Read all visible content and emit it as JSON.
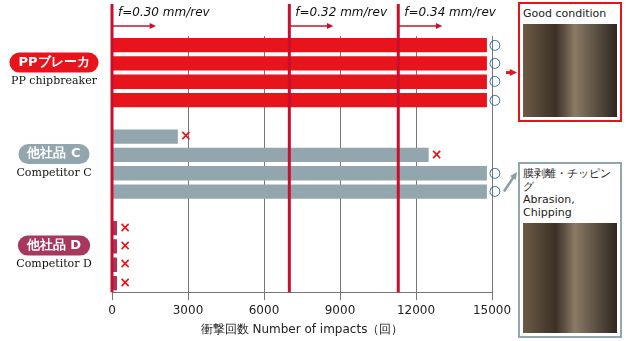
{
  "chart_data": {
    "type": "bar",
    "orientation": "horizontal",
    "x_label": "衝撃回数 Number of impacts（回）",
    "xlim": [
      0,
      15000
    ],
    "xticks": [
      0,
      3000,
      6000,
      9000,
      12000,
      15000
    ],
    "grid": true,
    "tick_labels": "x",
    "groups": [
      {
        "label": "PPブレーカ",
        "label_en": "PP chipbreaker",
        "color": "#e8141c",
        "values": [
          14800,
          14800,
          14800,
          14800
        ],
        "marks": [
          "○",
          "○",
          "○",
          "○"
        ]
      },
      {
        "label": "他社品 C",
        "label_en": "Competitor C",
        "color": "#93a6ad",
        "values": [
          2600,
          12500,
          14800,
          14800
        ],
        "marks": [
          "×",
          "×",
          "○",
          "○"
        ]
      },
      {
        "label": "他社品 D",
        "label_en": "Competitor D",
        "color": "#a8375e",
        "values": [
          200,
          200,
          200,
          200
        ],
        "marks": [
          "×",
          "×",
          "×",
          "×"
        ]
      }
    ],
    "mark_colors": {
      "○": "#1f5fa8",
      "×": "#e8141c"
    },
    "feed_lines": [
      {
        "x": 0,
        "label": "f=0.30 mm/rev",
        "color": "#c8102e"
      },
      {
        "x": 7000,
        "label": "f=0.32 mm/rev",
        "color": "#c8102e"
      },
      {
        "x": 11300,
        "label": "f=0.34 mm/rev",
        "color": "#c8102e"
      }
    ],
    "panels": [
      {
        "labels": [
          "Good condition"
        ]
      },
      {
        "labels": [
          "膜剥離・チッピング",
          "Abrasion, Chipping"
        ]
      }
    ]
  }
}
